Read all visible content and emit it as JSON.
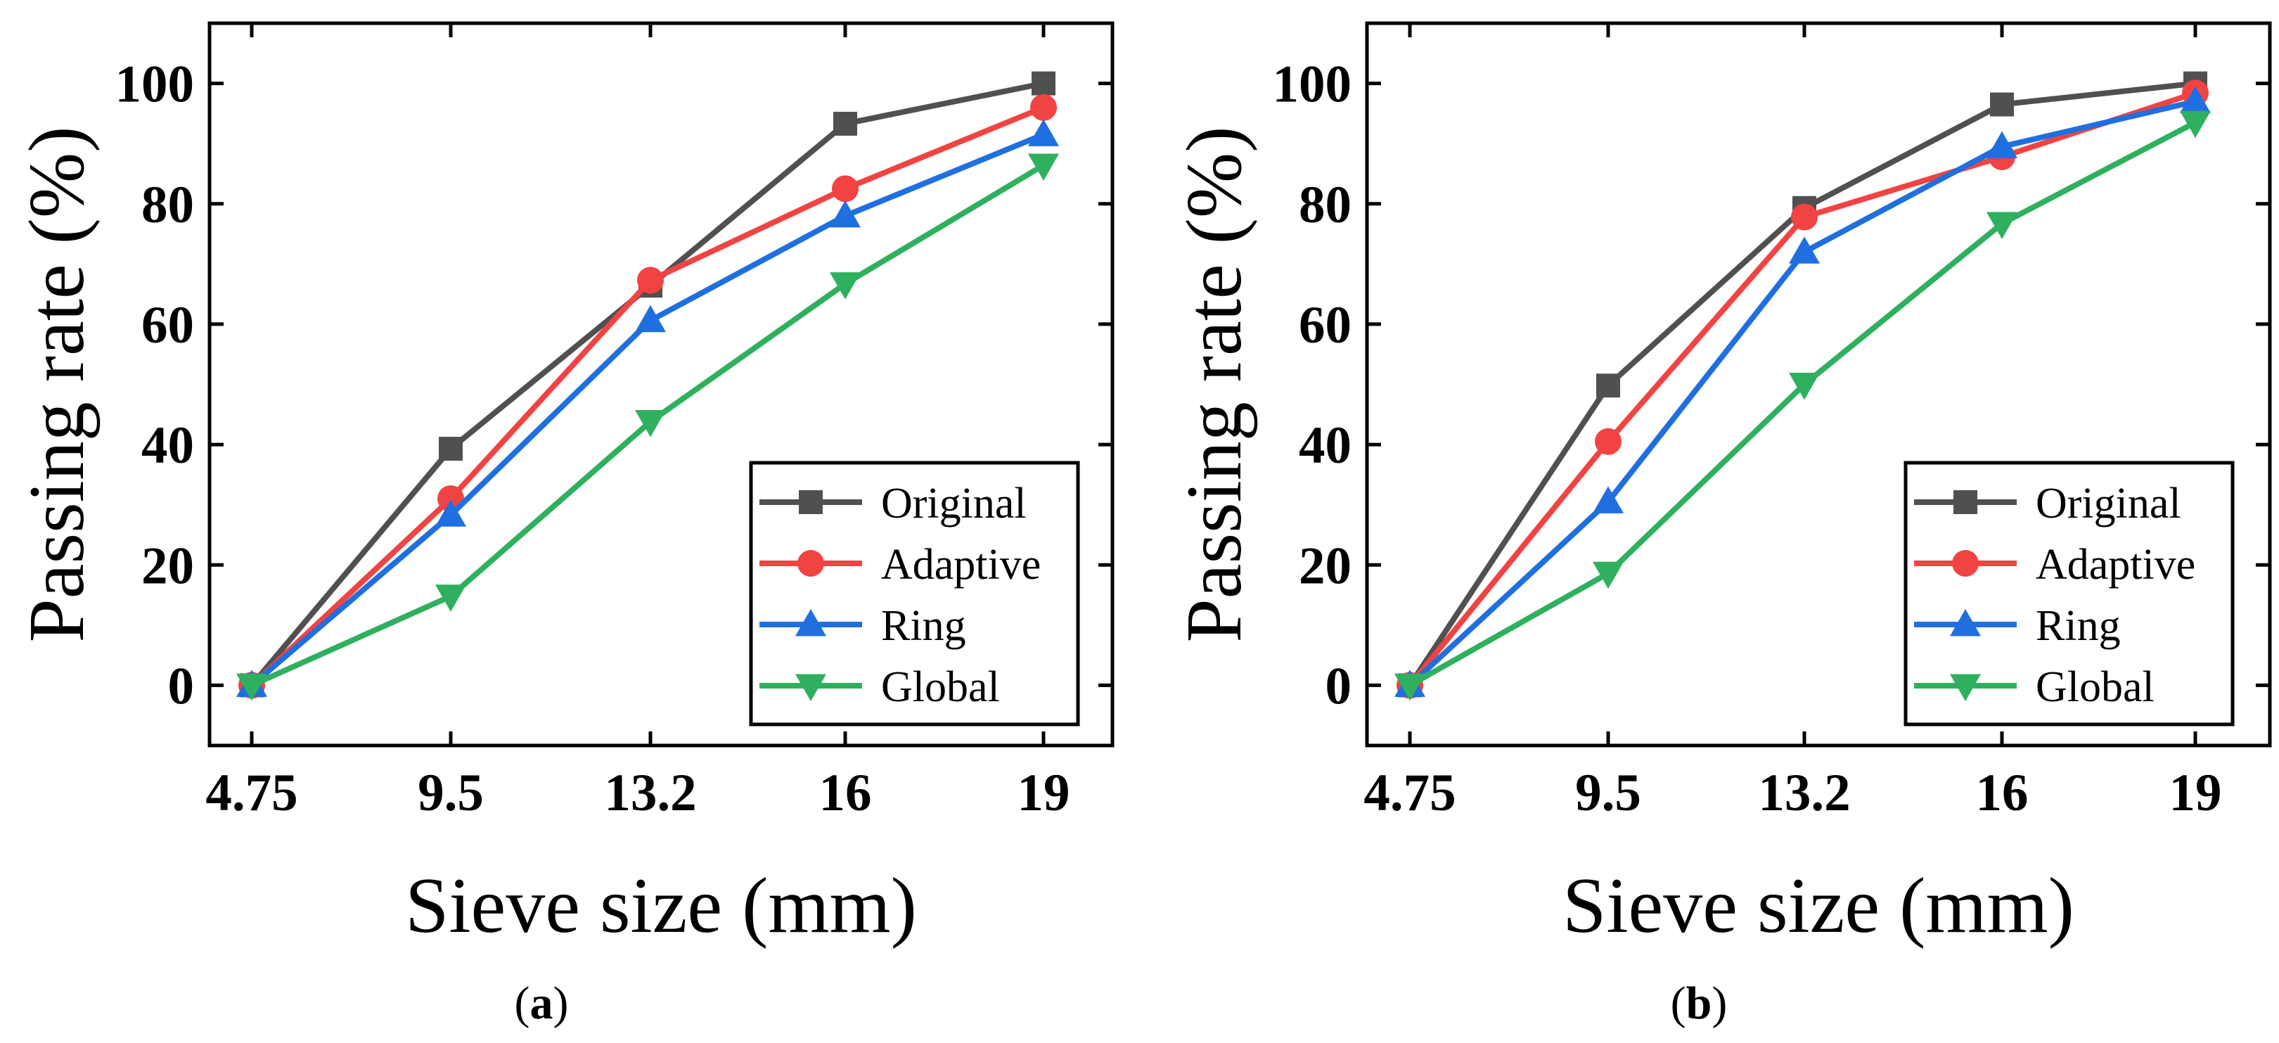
{
  "chart_data": [
    {
      "type": "line",
      "panel_label": "a",
      "categories": [
        "4.75",
        "9.5",
        "13.2",
        "16",
        "19"
      ],
      "xlabel": "Sieve size (mm)",
      "ylabel": "Passing rate (%)",
      "ylim": [
        -10,
        110
      ],
      "yticks": [
        0,
        20,
        40,
        60,
        80,
        100
      ],
      "grid": false,
      "legend_position": "bottom-right",
      "series": [
        {
          "name": "Original",
          "color": "#505050",
          "marker": "square",
          "values": [
            0,
            39.3,
            66.4,
            93.3,
            100
          ]
        },
        {
          "name": "Adaptive",
          "color": "#f24343",
          "marker": "circle",
          "values": [
            0,
            31.0,
            67.3,
            82.5,
            96.0
          ]
        },
        {
          "name": "Ring",
          "color": "#1f6fe0",
          "marker": "triangle-up",
          "values": [
            0,
            28.3,
            60.6,
            78.0,
            91.5
          ]
        },
        {
          "name": "Global",
          "color": "#2fb05e",
          "marker": "triangle-down",
          "values": [
            0,
            14.8,
            43.8,
            66.7,
            86.4
          ]
        }
      ]
    },
    {
      "type": "line",
      "panel_label": "b",
      "categories": [
        "4.75",
        "9.5",
        "13.2",
        "16",
        "19"
      ],
      "xlabel": "Sieve size (mm)",
      "ylabel": "Passing rate (%)",
      "ylim": [
        -10,
        110
      ],
      "yticks": [
        0,
        20,
        40,
        60,
        80,
        100
      ],
      "grid": false,
      "legend_position": "bottom-right",
      "series": [
        {
          "name": "Original",
          "color": "#505050",
          "marker": "square",
          "values": [
            0,
            49.8,
            79.3,
            96.5,
            100
          ]
        },
        {
          "name": "Adaptive",
          "color": "#f24343",
          "marker": "circle",
          "values": [
            0,
            40.5,
            77.8,
            87.8,
            98.4
          ]
        },
        {
          "name": "Ring",
          "color": "#1f6fe0",
          "marker": "triangle-up",
          "values": [
            0,
            30.5,
            72.0,
            89.5,
            97.0
          ]
        },
        {
          "name": "Global",
          "color": "#2fb05e",
          "marker": "triangle-down",
          "values": [
            0,
            18.6,
            50.0,
            76.7,
            93.5
          ]
        }
      ]
    }
  ]
}
